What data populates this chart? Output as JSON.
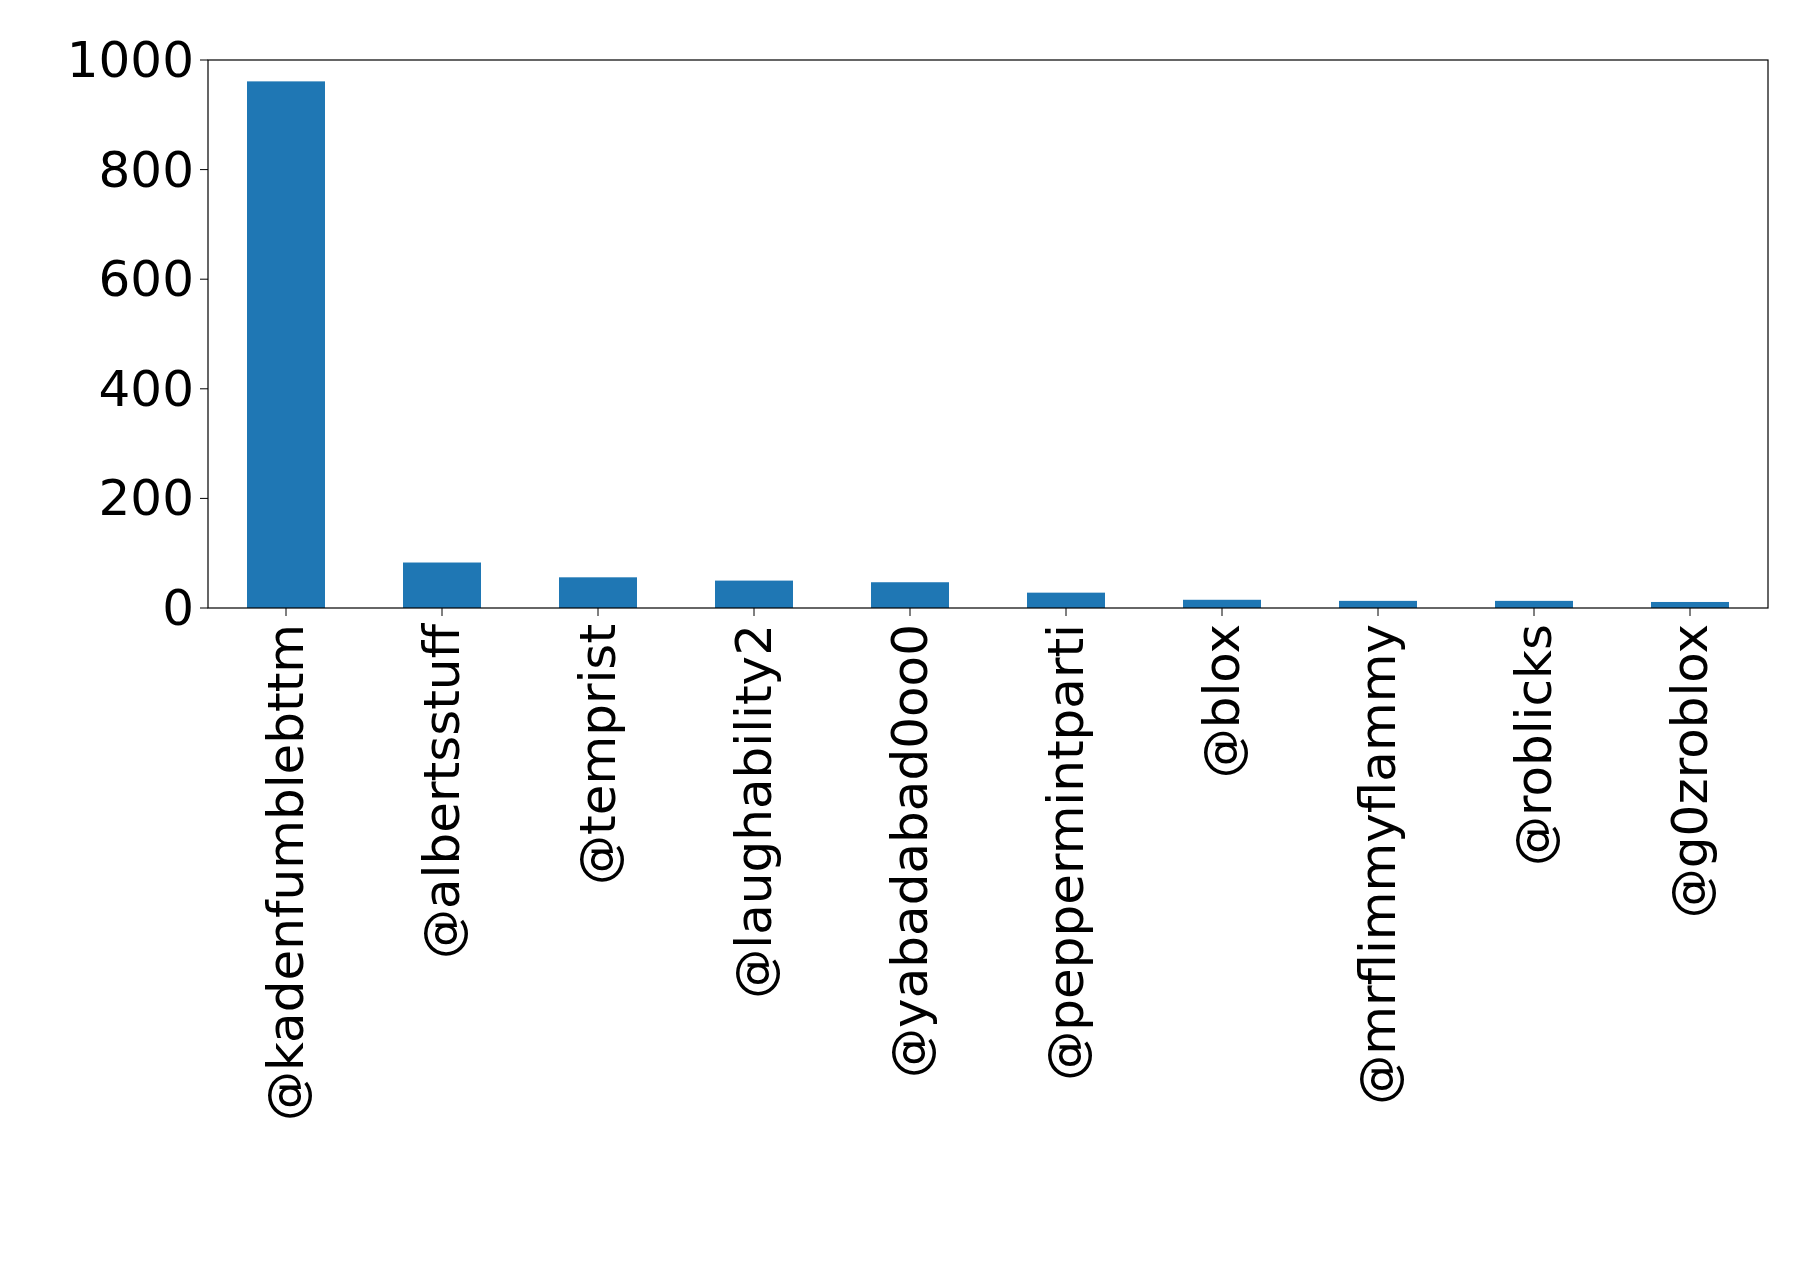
{
  "chart_data": {
    "type": "bar",
    "categories": [
      "@kadenfumblebttm",
      "@albertsstuff",
      "@temprist",
      "@laughability2",
      "@yabadabad0oo0",
      "@peppermintparti",
      "@blox",
      "@mrflimmyflammy",
      "@roblicks",
      "@g0zroblox"
    ],
    "values": [
      961,
      83,
      56,
      50,
      47,
      28,
      15,
      13,
      13,
      11
    ],
    "color": "#1f77b4",
    "ylim": [
      0,
      1000
    ],
    "yticks": [
      0,
      200,
      400,
      600,
      800,
      1000
    ],
    "grid": false
  }
}
